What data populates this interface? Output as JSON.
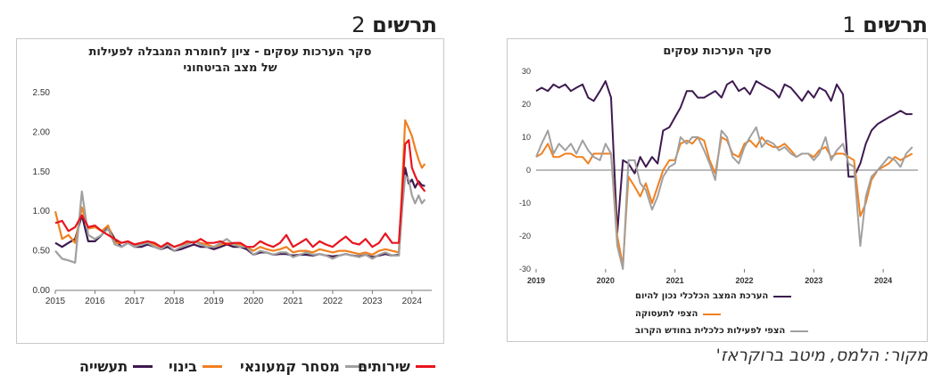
{
  "figures": {
    "fig2_title": {
      "word": "תרשים",
      "num": "2"
    },
    "fig1_title": {
      "word": "תרשים",
      "num": "1"
    },
    "source": "מקור: הלמס, מיטב ברוקראז'"
  },
  "chart_data": [
    {
      "id": "chart2",
      "type": "line",
      "title_line1": "סקר הערכות עסקים - ציון לחומרת המגבלה לפעילות",
      "title_line2": "של מצב הביטחוני",
      "x": [
        2015.0,
        2015.17,
        2015.33,
        2015.5,
        2015.67,
        2015.83,
        2016.0,
        2016.17,
        2016.33,
        2016.5,
        2016.67,
        2016.83,
        2017.0,
        2017.17,
        2017.33,
        2017.5,
        2017.67,
        2017.83,
        2018.0,
        2018.17,
        2018.33,
        2018.5,
        2018.67,
        2018.83,
        2019.0,
        2019.17,
        2019.33,
        2019.5,
        2019.67,
        2019.83,
        2020.0,
        2020.17,
        2020.33,
        2020.5,
        2020.67,
        2020.83,
        2021.0,
        2021.17,
        2021.33,
        2021.5,
        2021.67,
        2021.83,
        2022.0,
        2022.17,
        2022.33,
        2022.5,
        2022.67,
        2022.83,
        2023.0,
        2023.17,
        2023.33,
        2023.5,
        2023.67,
        2023.75,
        2023.83,
        2023.92,
        2024.0,
        2024.08,
        2024.17,
        2024.25,
        2024.33
      ],
      "series": [
        {
          "name": "תעשייה",
          "color": "#3d1a4f",
          "values": [
            0.6,
            0.55,
            0.6,
            0.65,
            0.95,
            0.62,
            0.62,
            0.7,
            0.8,
            0.65,
            0.55,
            0.6,
            0.55,
            0.55,
            0.58,
            0.55,
            0.52,
            0.55,
            0.5,
            0.52,
            0.55,
            0.58,
            0.55,
            0.55,
            0.52,
            0.55,
            0.58,
            0.55,
            0.55,
            0.52,
            0.45,
            0.48,
            0.48,
            0.45,
            0.46,
            0.46,
            0.44,
            0.45,
            0.45,
            0.44,
            0.46,
            0.44,
            0.43,
            0.44,
            0.46,
            0.44,
            0.43,
            0.45,
            0.42,
            0.44,
            0.46,
            0.44,
            0.45,
            1.15,
            1.55,
            1.35,
            1.4,
            1.3,
            1.38,
            1.33,
            1.32
          ]
        },
        {
          "name": "בינוי",
          "color": "#f08020",
          "values": [
            1.0,
            0.65,
            0.7,
            0.6,
            1.05,
            0.78,
            0.8,
            0.75,
            0.82,
            0.6,
            0.6,
            0.62,
            0.58,
            0.6,
            0.62,
            0.58,
            0.55,
            0.6,
            0.55,
            0.58,
            0.6,
            0.62,
            0.6,
            0.58,
            0.55,
            0.58,
            0.6,
            0.58,
            0.58,
            0.55,
            0.5,
            0.55,
            0.52,
            0.5,
            0.52,
            0.55,
            0.48,
            0.5,
            0.5,
            0.48,
            0.52,
            0.5,
            0.48,
            0.5,
            0.5,
            0.48,
            0.46,
            0.48,
            0.45,
            0.5,
            0.52,
            0.5,
            0.48,
            1.3,
            2.15,
            2.05,
            1.95,
            1.8,
            1.65,
            1.55,
            1.6
          ]
        },
        {
          "name": "מסחר קמעונאי",
          "color": "#a0a0a0",
          "values": [
            0.5,
            0.4,
            0.38,
            0.35,
            1.25,
            0.7,
            0.65,
            0.7,
            0.78,
            0.58,
            0.55,
            0.6,
            0.55,
            0.58,
            0.6,
            0.55,
            0.52,
            0.58,
            0.5,
            0.55,
            0.58,
            0.62,
            0.58,
            0.55,
            0.55,
            0.6,
            0.65,
            0.58,
            0.55,
            0.55,
            0.45,
            0.5,
            0.48,
            0.45,
            0.48,
            0.48,
            0.42,
            0.45,
            0.48,
            0.45,
            0.46,
            0.44,
            0.4,
            0.44,
            0.46,
            0.44,
            0.42,
            0.45,
            0.4,
            0.45,
            0.48,
            0.44,
            0.44,
            1.0,
            1.45,
            1.4,
            1.2,
            1.1,
            1.2,
            1.1,
            1.15
          ]
        },
        {
          "name": "שירותים",
          "color": "#e8141e",
          "values": [
            0.85,
            0.88,
            0.75,
            0.8,
            0.95,
            0.8,
            0.82,
            0.75,
            0.7,
            0.65,
            0.6,
            0.62,
            0.58,
            0.6,
            0.62,
            0.6,
            0.55,
            0.6,
            0.55,
            0.58,
            0.62,
            0.6,
            0.65,
            0.6,
            0.6,
            0.62,
            0.58,
            0.6,
            0.6,
            0.55,
            0.55,
            0.62,
            0.58,
            0.55,
            0.6,
            0.7,
            0.55,
            0.6,
            0.65,
            0.55,
            0.62,
            0.58,
            0.55,
            0.62,
            0.68,
            0.6,
            0.58,
            0.65,
            0.55,
            0.6,
            0.72,
            0.6,
            0.6,
            1.2,
            1.85,
            1.9,
            1.55,
            1.45,
            1.35,
            1.3,
            1.25
          ]
        }
      ],
      "xlim": [
        2015,
        2024.5
      ],
      "ylim": [
        0,
        2.5
      ],
      "yticks": [
        "0.00",
        "0.50",
        "1.00",
        "1.50",
        "2.00",
        "2.50"
      ],
      "xticks": [
        "2015",
        "2016",
        "2017",
        "2018",
        "2019",
        "2020",
        "2021",
        "2022",
        "2023",
        "2024"
      ]
    },
    {
      "id": "chart1",
      "type": "line",
      "title": "סקר הערכות עסקים",
      "x": [
        2019.0,
        2019.08,
        2019.17,
        2019.25,
        2019.33,
        2019.42,
        2019.5,
        2019.58,
        2019.67,
        2019.75,
        2019.83,
        2019.92,
        2020.0,
        2020.08,
        2020.17,
        2020.25,
        2020.33,
        2020.42,
        2020.5,
        2020.58,
        2020.67,
        2020.75,
        2020.83,
        2020.92,
        2021.0,
        2021.08,
        2021.17,
        2021.25,
        2021.33,
        2021.42,
        2021.5,
        2021.58,
        2021.67,
        2021.75,
        2021.83,
        2021.92,
        2022.0,
        2022.08,
        2022.17,
        2022.25,
        2022.33,
        2022.42,
        2022.5,
        2022.58,
        2022.67,
        2022.75,
        2022.83,
        2022.92,
        2023.0,
        2023.08,
        2023.17,
        2023.25,
        2023.33,
        2023.42,
        2023.5,
        2023.58,
        2023.67,
        2023.75,
        2023.83,
        2023.92,
        2024.0,
        2024.08,
        2024.17,
        2024.25,
        2024.33,
        2024.42
      ],
      "series": [
        {
          "name": "הערכת המצב הכלכלי נכון להיום",
          "color": "#3d1a4f",
          "values": [
            24,
            25,
            24,
            26,
            25,
            26,
            24,
            25,
            26,
            22,
            21,
            24,
            27,
            22,
            -19,
            3,
            2,
            -1,
            4,
            1,
            4,
            2,
            12,
            13,
            16,
            19,
            24,
            24,
            22,
            22,
            23,
            24,
            22,
            26,
            27,
            24,
            25,
            23,
            27,
            26,
            25,
            24,
            22,
            26,
            25,
            23,
            21,
            24,
            22,
            25,
            24,
            21,
            26,
            23,
            -2,
            -2,
            2,
            8,
            12,
            14,
            15,
            16,
            17,
            18,
            17,
            17
          ]
        },
        {
          "name": "הצפי לתעסוקה",
          "color": "#f08020",
          "values": [
            4,
            5,
            8,
            4,
            4,
            5,
            5,
            4,
            4,
            2,
            5,
            5,
            5,
            5,
            -20,
            -29,
            -2,
            -5,
            -8,
            -4,
            -10,
            -5,
            0,
            3,
            3,
            8,
            9,
            8,
            10,
            9,
            3,
            -1,
            10,
            9,
            5,
            4,
            8,
            9,
            7,
            10,
            8,
            7,
            7,
            8,
            6,
            4,
            5,
            5,
            4,
            6,
            7,
            4,
            5,
            5,
            4,
            3,
            -14,
            -10,
            -3,
            0,
            1,
            2,
            4,
            3,
            4,
            5
          ]
        },
        {
          "name": "הצפי לפעילות כלכלית בחודש הקרוב",
          "color": "#a0a0a0",
          "values": [
            4,
            8,
            12,
            5,
            8,
            6,
            8,
            5,
            9,
            6,
            4,
            3,
            8,
            5,
            -23,
            -30,
            3,
            3,
            -4,
            -6,
            -12,
            -8,
            -2,
            1,
            2,
            10,
            8,
            10,
            10,
            6,
            2,
            -3,
            12,
            10,
            4,
            2,
            7,
            10,
            13,
            7,
            9,
            8,
            6,
            7,
            5,
            4,
            5,
            5,
            3,
            5,
            10,
            3,
            6,
            8,
            2,
            1,
            -23,
            -8,
            -2,
            0,
            2,
            4,
            3,
            1,
            5,
            7
          ]
        }
      ],
      "xlim": [
        2019,
        2024.5
      ],
      "ylim": [
        -30,
        30
      ],
      "yticks": [
        "30",
        "20",
        "10",
        "0",
        "-10",
        "-20",
        "-30"
      ],
      "xticks": [
        "2019",
        "2020",
        "2021",
        "2022",
        "2023",
        "2024"
      ]
    }
  ]
}
